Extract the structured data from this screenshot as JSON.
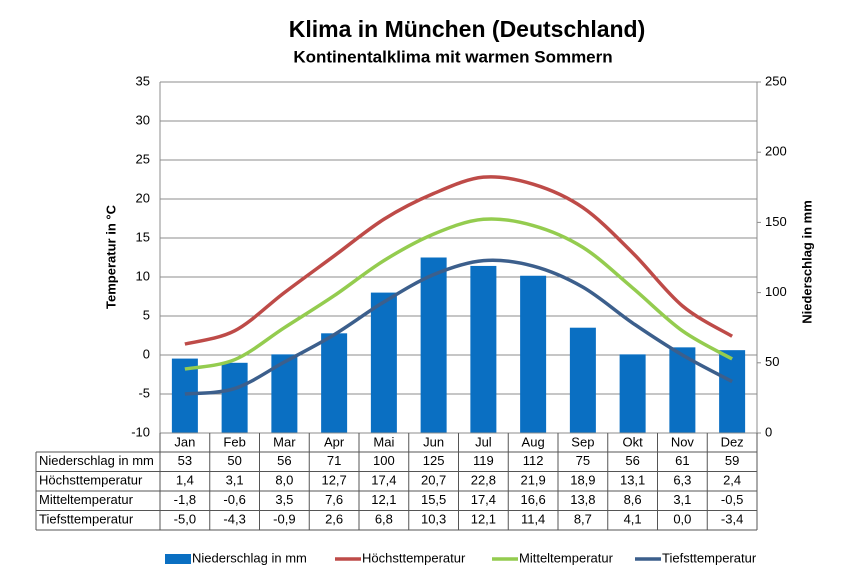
{
  "chart_data": {
    "type": "combo",
    "title": "Klima in München (Deutschland)",
    "subtitle": "Kontinentalklima mit warmen Sommern",
    "y_label": "Temperatur in °C",
    "y2_label": "Niederschlag in mm",
    "categories": [
      "Jan",
      "Feb",
      "Mar",
      "Apr",
      "Mai",
      "Jun",
      "Jul",
      "Aug",
      "Sep",
      "Okt",
      "Nov",
      "Dez"
    ],
    "series": [
      {
        "name": "Niederschlag in mm",
        "type": "bar",
        "axis": "y2",
        "color": "#0a6fc2",
        "values": [
          53,
          50,
          56,
          71,
          100,
          125,
          119,
          112,
          75,
          56,
          61,
          59
        ]
      },
      {
        "name": "Höchsttemperatur",
        "type": "line",
        "color": "#be4b48",
        "values": [
          1.4,
          3.1,
          8.0,
          12.7,
          17.4,
          20.7,
          22.8,
          21.9,
          18.9,
          13.1,
          6.3,
          2.4
        ],
        "value_labels": [
          "1,4",
          "3,1",
          "8,0",
          "12,7",
          "17,4",
          "20,7",
          "22,8",
          "21,9",
          "18,9",
          "13,1",
          "6,3",
          "2,4"
        ]
      },
      {
        "name": "Mitteltemperatur",
        "type": "line",
        "color": "#94cc4f",
        "values": [
          -1.8,
          -0.6,
          3.5,
          7.6,
          12.1,
          15.5,
          17.4,
          16.6,
          13.8,
          8.6,
          3.1,
          -0.5
        ],
        "value_labels": [
          "-1,8",
          "-0,6",
          "3,5",
          "7,6",
          "12,1",
          "15,5",
          "17,4",
          "16,6",
          "13,8",
          "8,6",
          "3,1",
          "-0,5"
        ]
      },
      {
        "name": "Tiefsttemperatur",
        "type": "line",
        "color": "#3c5f8c",
        "values": [
          -5.0,
          -4.3,
          -0.9,
          2.6,
          6.8,
          10.3,
          12.1,
          11.4,
          8.7,
          4.1,
          0.0,
          -3.4
        ],
        "value_labels": [
          "-5,0",
          "-4,3",
          "-0,9",
          "2,6",
          "6,8",
          "10,3",
          "12,1",
          "11,4",
          "8,7",
          "4,1",
          "0,0",
          "-3,4"
        ]
      }
    ],
    "ylim": [
      -10,
      35
    ],
    "yticks": [
      -10,
      -5,
      0,
      5,
      10,
      15,
      20,
      25,
      30,
      35
    ],
    "y2lim": [
      0,
      250
    ],
    "y2ticks": [
      0,
      50,
      100,
      150,
      200,
      250
    ],
    "grid": true,
    "legend": "bottom"
  }
}
